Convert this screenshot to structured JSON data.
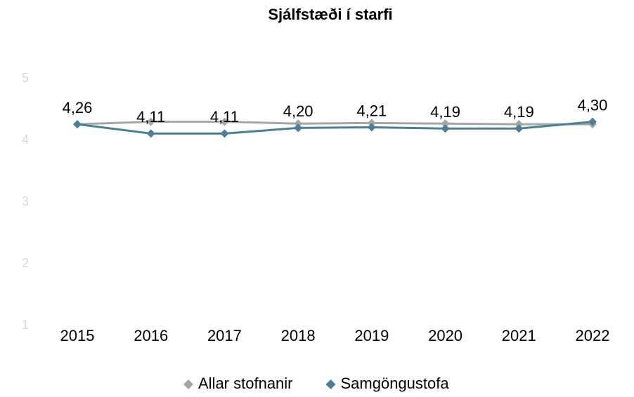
{
  "chart_data": {
    "type": "line",
    "title": "Sjálfstæði í starfi",
    "categories": [
      "2015",
      "2016",
      "2017",
      "2018",
      "2019",
      "2020",
      "2021",
      "2022"
    ],
    "series": [
      {
        "name": "Allar stofnanir",
        "color": "#a6a6a6",
        "values": [
          4.26,
          4.3,
          4.3,
          4.27,
          4.28,
          4.27,
          4.26,
          4.26
        ]
      },
      {
        "name": "Samgöngustofa",
        "color": "#4a7f96",
        "values": [
          4.26,
          4.11,
          4.11,
          4.2,
          4.21,
          4.19,
          4.19,
          4.3
        ],
        "value_labels": [
          "4,26",
          "4,11",
          "4,11",
          "4,20",
          "4,21",
          "4,19",
          "4,19",
          "4,30"
        ]
      }
    ],
    "ylim": [
      1,
      5
    ],
    "yticks": [
      1,
      2,
      3,
      4,
      5
    ],
    "grid": false,
    "legend": "bottom"
  }
}
